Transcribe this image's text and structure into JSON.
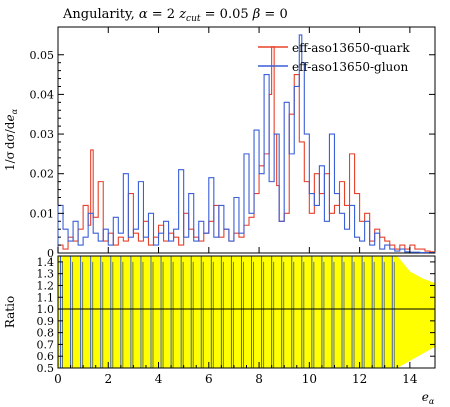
{
  "chart_data": [
    {
      "type": "histogram",
      "title": "Angularity, α = 2 z_cut = 0.05 β = 0",
      "title_parts": {
        "main": "Angularity, ",
        "alpha": "α",
        "eq1": " = 2 ",
        "z": "z",
        "cut": "cut",
        "eq2": " = 0.05 ",
        "beta": "β",
        "eq3": " = 0"
      },
      "ylabel": "1/σ dσ/de_α",
      "ylabel_parts": {
        "frac": "1/σ",
        "d": "dσ/d",
        "e": "e",
        "alpha": "α"
      },
      "xlabel": "e_α",
      "xlabel_parts": {
        "e": "e",
        "alpha": "α"
      },
      "xlim": [
        0,
        15
      ],
      "ylim": [
        0,
        0.057
      ],
      "yticks": [
        0,
        0.01,
        0.02,
        0.03,
        0.04,
        0.05
      ],
      "ytick_labels": [
        "0",
        "0.01",
        "0.02",
        "0.03",
        "0.04",
        "0.05"
      ],
      "legend_position": "top-right",
      "series": [
        {
          "name": "eff-aso13650-quark",
          "color": "#e8402a",
          "bins_edges": [
            0,
            0.2,
            0.4,
            0.6,
            0.8,
            1.0,
            1.2,
            1.3,
            1.4,
            1.6,
            1.8,
            2.0,
            2.2,
            2.4,
            2.6,
            2.8,
            3.0,
            3.2,
            3.4,
            3.6,
            3.8,
            4.0,
            4.2,
            4.4,
            4.6,
            4.8,
            5.0,
            5.2,
            5.4,
            5.6,
            5.8,
            6.0,
            6.2,
            6.4,
            6.6,
            6.8,
            7.0,
            7.2,
            7.4,
            7.6,
            7.8,
            8.0,
            8.2,
            8.4,
            8.5,
            8.6,
            8.7,
            8.8,
            9.0,
            9.2,
            9.4,
            9.6,
            9.8,
            10.0,
            10.2,
            10.4,
            10.6,
            10.8,
            11.0,
            11.2,
            11.4,
            11.6,
            11.8,
            12.0,
            12.2,
            12.4,
            12.6,
            12.8,
            13.0,
            13.2,
            13.4,
            13.6,
            13.8,
            14.0,
            14.2,
            14.4,
            14.6,
            14.8,
            15.0
          ],
          "values": [
            0.002,
            0.001,
            0.004,
            0.003,
            0.006,
            0.012,
            0.007,
            0.026,
            0.009,
            0.018,
            0.003,
            0.005,
            0.002,
            0.004,
            0.003,
            0.015,
            0.005,
            0.003,
            0.008,
            0.002,
            0.004,
            0.007,
            0.003,
            0.005,
            0.004,
            0.002,
            0.01,
            0.006,
            0.004,
            0.003,
            0.005,
            0.008,
            0.012,
            0.004,
            0.006,
            0.003,
            0.005,
            0.004,
            0.007,
            0.009,
            0.015,
            0.022,
            0.025,
            0.04,
            0.052,
            0.03,
            0.017,
            0.008,
            0.01,
            0.035,
            0.045,
            0.028,
            0.018,
            0.01,
            0.02,
            0.015,
            0.02,
            0.01,
            0.012,
            0.018,
            0.012,
            0.025,
            0.015,
            0.008,
            0.01,
            0.003,
            0.006,
            0.004,
            0.003,
            0.002,
            0.001,
            0.002,
            0.001,
            0.002,
            0.001,
            0.001,
            0.0005,
            0.0003
          ]
        },
        {
          "name": "eff-aso13650-gluon",
          "color": "#3a5fd8",
          "bins_edges": [
            0,
            0.2,
            0.4,
            0.6,
            0.8,
            1.0,
            1.2,
            1.4,
            1.6,
            1.8,
            2.0,
            2.2,
            2.4,
            2.6,
            2.8,
            3.0,
            3.2,
            3.4,
            3.6,
            3.8,
            4.0,
            4.2,
            4.4,
            4.6,
            4.8,
            5.0,
            5.2,
            5.4,
            5.6,
            5.8,
            6.0,
            6.2,
            6.4,
            6.6,
            6.8,
            7.0,
            7.2,
            7.4,
            7.6,
            7.8,
            8.0,
            8.2,
            8.4,
            8.6,
            8.8,
            9.0,
            9.2,
            9.4,
            9.6,
            9.7,
            9.8,
            10.0,
            10.2,
            10.4,
            10.6,
            10.8,
            11.0,
            11.2,
            11.4,
            11.6,
            11.8,
            12.0,
            12.2,
            12.4,
            12.6,
            12.8,
            13.0,
            13.2,
            13.4,
            13.6,
            13.8,
            14.0,
            14.2,
            14.4,
            14.6,
            14.8,
            15.0
          ],
          "values": [
            0.012,
            0.006,
            0.003,
            0.008,
            0.002,
            0.004,
            0.01,
            0.005,
            0.003,
            0.006,
            0.002,
            0.009,
            0.005,
            0.02,
            0.004,
            0.006,
            0.018,
            0.004,
            0.01,
            0.002,
            0.005,
            0.008,
            0.003,
            0.006,
            0.021,
            0.004,
            0.015,
            0.003,
            0.008,
            0.005,
            0.019,
            0.004,
            0.012,
            0.006,
            0.003,
            0.014,
            0.005,
            0.025,
            0.01,
            0.031,
            0.02,
            0.045,
            0.018,
            0.03,
            0.008,
            0.038,
            0.025,
            0.042,
            0.055,
            0.048,
            0.03,
            0.015,
            0.012,
            0.022,
            0.008,
            0.03,
            0.015,
            0.01,
            0.006,
            0.012,
            0.004,
            0.003,
            0.008,
            0.002,
            0.005,
            0.001,
            0.002,
            0.001,
            0.0005,
            0.001,
            0.0003,
            0.0002,
            0.0002,
            0.0001,
            0.0001,
            0.0001
          ]
        }
      ]
    },
    {
      "type": "ratio-histogram",
      "ylabel": "Ratio",
      "xlim": [
        0,
        15
      ],
      "ylim": [
        0.5,
        1.45
      ],
      "yticks": [
        0.5,
        0.6,
        0.7,
        0.8,
        0.9,
        1.0,
        1.1,
        1.2,
        1.3,
        1.4
      ],
      "ytick_labels": [
        "0.5",
        "0.6",
        "0.7",
        "0.8",
        "0.9",
        "1.0",
        "1.1",
        "1.2",
        "1.3",
        "1.4"
      ],
      "xticks": [
        0,
        2,
        4,
        6,
        8,
        10,
        12,
        14
      ],
      "xtick_labels": [
        "0",
        "2",
        "4",
        "6",
        "8",
        "10",
        "12",
        "14"
      ],
      "reference_line": 1.0,
      "band_color": "#ffff00",
      "band": {
        "x": [
          0,
          13.5,
          14.0,
          14.5,
          15.0
        ],
        "lo": [
          0.5,
          0.5,
          0.56,
          0.62,
          0.68
        ],
        "hi": [
          1.45,
          1.45,
          1.32,
          1.26,
          1.22
        ]
      },
      "ratio_color": "#3a5fd8",
      "ratio_spikes_x": [
        0.1,
        0.5,
        0.9,
        1.3,
        1.7,
        2.1,
        2.5,
        2.9,
        3.3,
        3.7,
        4.1,
        4.5,
        4.9,
        5.3,
        5.7,
        6.1,
        6.5,
        6.9,
        7.3,
        7.7,
        8.1,
        8.5,
        8.9,
        9.3,
        9.7,
        10.1,
        10.5,
        10.9,
        11.3,
        11.7,
        12.1,
        12.5,
        12.9,
        13.3
      ]
    }
  ]
}
